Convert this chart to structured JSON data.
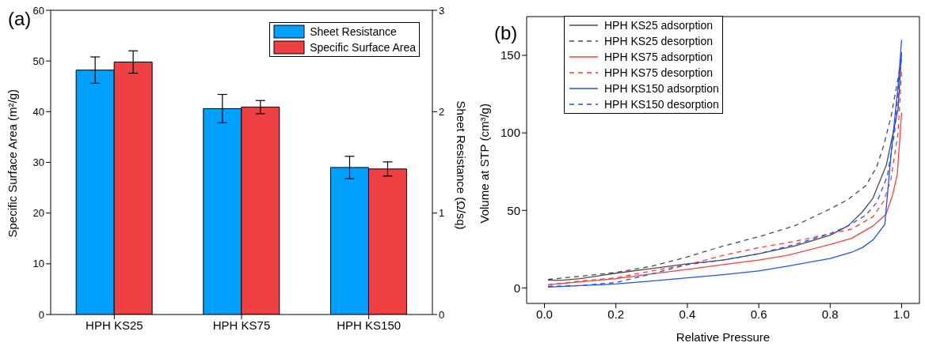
{
  "chart_data": [
    {
      "type": "bar",
      "annotations": [
        "(a)"
      ],
      "categories": [
        "HPH KS25",
        "HPH KS75",
        "HPH KS150"
      ],
      "ylabel": "Specific Surface Area (m²/g)",
      "y2label": "Sheet Resistance (Ω/sq)",
      "ylim": [
        0,
        60
      ],
      "yticks": [
        0,
        10,
        20,
        30,
        40,
        50,
        60
      ],
      "y2lim": [
        0,
        3
      ],
      "y2ticks": [
        0,
        1,
        2,
        3
      ],
      "legend": "top right",
      "series": [
        {
          "name": "Sheet Resistance",
          "color": "#00a0ff",
          "axis": "y2",
          "values": [
            2.41,
            2.03,
            1.45
          ],
          "errors": [
            0.13,
            0.14,
            0.11
          ]
        },
        {
          "name": "Specific Surface Area",
          "color": "#ef4044",
          "values": [
            49.8,
            40.9,
            28.7
          ],
          "errors": [
            2.2,
            1.3,
            1.4
          ]
        }
      ]
    },
    {
      "type": "line",
      "annotations": [
        "(b)"
      ],
      "xlabel": "Relative Pressure",
      "ylabel": "Volume at STP (cm³/g)",
      "xlim": [
        -0.05,
        1.05
      ],
      "xticks": [
        {
          "value": 0,
          "label": "0.0"
        },
        0.2,
        0.4,
        0.6,
        0.8,
        {
          "value": 1,
          "label": "1.0"
        }
      ],
      "ylim": [
        -10,
        175
      ],
      "yticks": [
        0,
        50,
        100,
        150
      ],
      "legend": "top left",
      "series": [
        {
          "name": "HPH KS25 adsorption",
          "color": "#4a4a4a",
          "line_style": "solid",
          "x": [
            0.01,
            0.05,
            0.1,
            0.2,
            0.3,
            0.4,
            0.5,
            0.6,
            0.7,
            0.8,
            0.85,
            0.89,
            0.92,
            0.957,
            0.99,
            1.0
          ],
          "values": [
            5,
            5,
            6,
            9.5,
            12.5,
            15.5,
            18,
            22,
            27,
            34,
            40,
            49,
            58,
            79,
            115,
            152
          ]
        },
        {
          "name": "HPH KS25 desorption",
          "color": "#4a4a4a",
          "line_style": "dashed",
          "x": [
            0.01,
            0.1,
            0.2,
            0.3,
            0.4,
            0.5,
            0.6,
            0.7,
            0.8,
            0.85,
            0.9,
            0.93,
            0.95,
            0.97,
            0.99,
            1.0
          ],
          "values": [
            5.5,
            7.5,
            10,
            14,
            20,
            27,
            33,
            40,
            51,
            57,
            66,
            78,
            92,
            110,
            135,
            150
          ]
        },
        {
          "name": "HPH KS75 adsorption",
          "color": "#ff3b3b",
          "line_style": "solid",
          "x": [
            0.01,
            0.1,
            0.2,
            0.3,
            0.4,
            0.5,
            0.6,
            0.68,
            0.8,
            0.86,
            0.92,
            0.956,
            0.975,
            0.988,
            1.0
          ],
          "values": [
            2,
            4,
            6,
            9,
            12,
            15,
            18,
            21,
            28,
            32,
            40,
            47.5,
            60,
            73.5,
            113
          ]
        },
        {
          "name": "HPH KS75 desorption",
          "color": "#ff3b3b",
          "line_style": "dashed",
          "x": [
            0.01,
            0.1,
            0.2,
            0.3,
            0.4,
            0.5,
            0.6,
            0.7,
            0.8,
            0.86,
            0.92,
            0.95,
            0.97,
            0.99,
            1.0
          ],
          "values": [
            2,
            4.5,
            6.5,
            11,
            15,
            21,
            26,
            30,
            35,
            38,
            46,
            56,
            70,
            100,
            140
          ]
        },
        {
          "name": "HPH KS150 adsorption",
          "color": "#1f4fff",
          "line_style": "solid",
          "x": [
            0.01,
            0.1,
            0.2,
            0.3,
            0.4,
            0.5,
            0.6,
            0.68,
            0.8,
            0.86,
            0.89,
            0.92,
            0.953,
            0.97,
            0.99,
            1.0
          ],
          "values": [
            0.5,
            1.5,
            2.5,
            4.5,
            6.5,
            8.5,
            11,
            14,
            19,
            23,
            26,
            31,
            41,
            85,
            130,
            160
          ]
        },
        {
          "name": "HPH KS150 desorption",
          "color": "#1f4fff",
          "line_style": "dashed",
          "x": [
            0.01,
            0.1,
            0.2,
            0.3,
            0.4,
            0.5,
            0.6,
            0.7,
            0.8,
            0.85,
            0.9,
            0.93,
            0.96,
            0.98,
            0.99,
            1.0
          ],
          "values": [
            1,
            1.5,
            3.5,
            9,
            15,
            18,
            22,
            28,
            35,
            40,
            47,
            55,
            72,
            100,
            125,
            150
          ]
        }
      ]
    }
  ]
}
